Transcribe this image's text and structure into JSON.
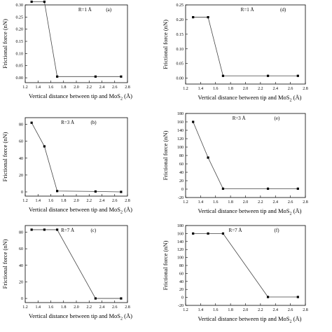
{
  "chart_data": [
    {
      "type": "line",
      "panel": "(a)",
      "annotation": "R=1 Å",
      "ylabel": "Frictional force (nN)",
      "xlabel": "Vertical distance between tip and MoS",
      "xlabel_sub": "2",
      "xlabel_tail": " (Å)",
      "xlim": [
        1.2,
        2.8
      ],
      "ylim": [
        -0.02,
        0.3
      ],
      "xticks": [
        "1.2",
        "1.4",
        "1.6",
        "1.8",
        "2.0",
        "2.2",
        "2.4",
        "2.6",
        "2.8"
      ],
      "xtick_values": [
        1.2,
        1.4,
        1.6,
        1.8,
        2.0,
        2.2,
        2.4,
        2.6,
        2.8
      ],
      "yticks": [
        "0.00",
        "0.05",
        "0.10",
        "0.15",
        "0.20",
        "0.25",
        "0.30"
      ],
      "ytick_values": [
        0,
        0.05,
        0.1,
        0.15,
        0.2,
        0.25,
        0.3
      ],
      "x": [
        1.3,
        1.5,
        1.7,
        2.3,
        2.7
      ],
      "y": [
        0.313,
        0.313,
        0.005,
        0.005,
        0.005
      ]
    },
    {
      "type": "line",
      "panel": "(d)",
      "annotation": "R=1 Å",
      "ylabel": "Frictional force (nN)",
      "xlabel": "Vertical distance between tip and MoS",
      "xlabel_sub": "2",
      "xlabel_tail": " (Å)",
      "xlim": [
        1.2,
        2.8
      ],
      "ylim": [
        -0.02,
        0.25
      ],
      "xticks": [
        "1.2",
        "1.4",
        "1.6",
        "1.8",
        "2.0",
        "2.2",
        "2.4",
        "2.6",
        "2.8"
      ],
      "xtick_values": [
        1.2,
        1.4,
        1.6,
        1.8,
        2.0,
        2.2,
        2.4,
        2.6,
        2.8
      ],
      "yticks": [
        "0.00",
        "0.05",
        "0.10",
        "0.15",
        "0.20",
        "0.25"
      ],
      "ytick_values": [
        0,
        0.05,
        0.1,
        0.15,
        0.2,
        0.25
      ],
      "x": [
        1.3,
        1.5,
        1.7,
        2.3,
        2.7
      ],
      "y": [
        0.208,
        0.208,
        0.008,
        0.008,
        0.008
      ]
    },
    {
      "type": "line",
      "panel": "(b)",
      "annotation": "R=3 Å",
      "ylabel": "Frictional force (nN)",
      "xlabel": "Vertical distance between tip and MoS",
      "xlabel_sub": "2",
      "xlabel_tail": " (Å)",
      "xlim": [
        1.2,
        2.8
      ],
      "ylim": [
        -5,
        88
      ],
      "xticks": [
        "1.2",
        "1.4",
        "1.6",
        "1.8",
        "2.0",
        "2.2",
        "2.4",
        "2.6",
        "2.8"
      ],
      "xtick_values": [
        1.2,
        1.4,
        1.6,
        1.8,
        2.0,
        2.2,
        2.4,
        2.6,
        2.8
      ],
      "yticks": [
        "0",
        "20",
        "40",
        "60",
        "80"
      ],
      "ytick_values": [
        0,
        20,
        40,
        60,
        80
      ],
      "x": [
        1.3,
        1.5,
        1.7,
        2.3,
        2.7
      ],
      "y": [
        82,
        54,
        1,
        0.5,
        0
      ]
    },
    {
      "type": "line",
      "panel": "(e)",
      "annotation": "R=3 Å",
      "ylabel": "Frictional force (nN)",
      "xlabel": "Vertical distance between tip and MoS",
      "xlabel_sub": "2",
      "xlabel_tail": " (Å)",
      "xlim": [
        1.2,
        2.8
      ],
      "ylim": [
        -20,
        180
      ],
      "xticks": [
        "1.2",
        "1.4",
        "1.6",
        "1.8",
        "2.0",
        "2.2",
        "2.4",
        "2.6",
        "2.8"
      ],
      "xtick_values": [
        1.2,
        1.4,
        1.6,
        1.8,
        2.0,
        2.2,
        2.4,
        2.6,
        2.8
      ],
      "yticks": [
        "-20",
        "0",
        "20",
        "40",
        "60",
        "80",
        "100",
        "120",
        "140",
        "160",
        "180"
      ],
      "ytick_values": [
        -20,
        0,
        20,
        40,
        60,
        80,
        100,
        120,
        140,
        160,
        180
      ],
      "x": [
        1.3,
        1.5,
        1.7,
        2.3,
        2.7
      ],
      "y": [
        160,
        75,
        1,
        1,
        1
      ]
    },
    {
      "type": "line",
      "panel": "(c)",
      "annotation": "R=7 Å",
      "ylabel": "Frictional force (nN)",
      "xlabel": "Vertical distance between tip and MoS",
      "xlabel_sub": "2",
      "xlabel_tail": " (Å)",
      "xlim": [
        1.2,
        2.8
      ],
      "ylim": [
        -5,
        88
      ],
      "xticks": [
        "1.2",
        "1.4",
        "1.6",
        "1.8",
        "2.0",
        "2.2",
        "2.4",
        "2.6",
        "2.8"
      ],
      "xtick_values": [
        1.2,
        1.4,
        1.6,
        1.8,
        2.0,
        2.2,
        2.4,
        2.6,
        2.8
      ],
      "yticks": [
        "0",
        "20",
        "40",
        "60",
        "80"
      ],
      "ytick_values": [
        0,
        20,
        40,
        60,
        80
      ],
      "x": [
        1.3,
        1.5,
        1.7,
        2.3,
        2.7
      ],
      "y": [
        83,
        83,
        83,
        0,
        0
      ]
    },
    {
      "type": "line",
      "panel": "(f)",
      "annotation": "R=7 Å",
      "ylabel": "Frictional force (nN)",
      "xlabel": "Vertical distance between tip and MoS",
      "xlabel_sub": "2",
      "xlabel_tail": " (Å)",
      "xlim": [
        1.2,
        2.8
      ],
      "ylim": [
        -20,
        180
      ],
      "xticks": [
        "1.2",
        "1.4",
        "1.6",
        "1.8",
        "2.0",
        "2.2",
        "2.4",
        "2.6",
        "2.8"
      ],
      "xtick_values": [
        1.2,
        1.4,
        1.6,
        1.8,
        2.0,
        2.2,
        2.4,
        2.6,
        2.8
      ],
      "yticks": [
        "-20",
        "0",
        "20",
        "40",
        "60",
        "80",
        "100",
        "120",
        "140",
        "160",
        "180"
      ],
      "ytick_values": [
        -20,
        0,
        20,
        40,
        60,
        80,
        100,
        120,
        140,
        160,
        180
      ],
      "x": [
        1.3,
        1.5,
        1.7,
        2.3,
        2.7
      ],
      "y": [
        160,
        160,
        160,
        1,
        1
      ]
    }
  ]
}
